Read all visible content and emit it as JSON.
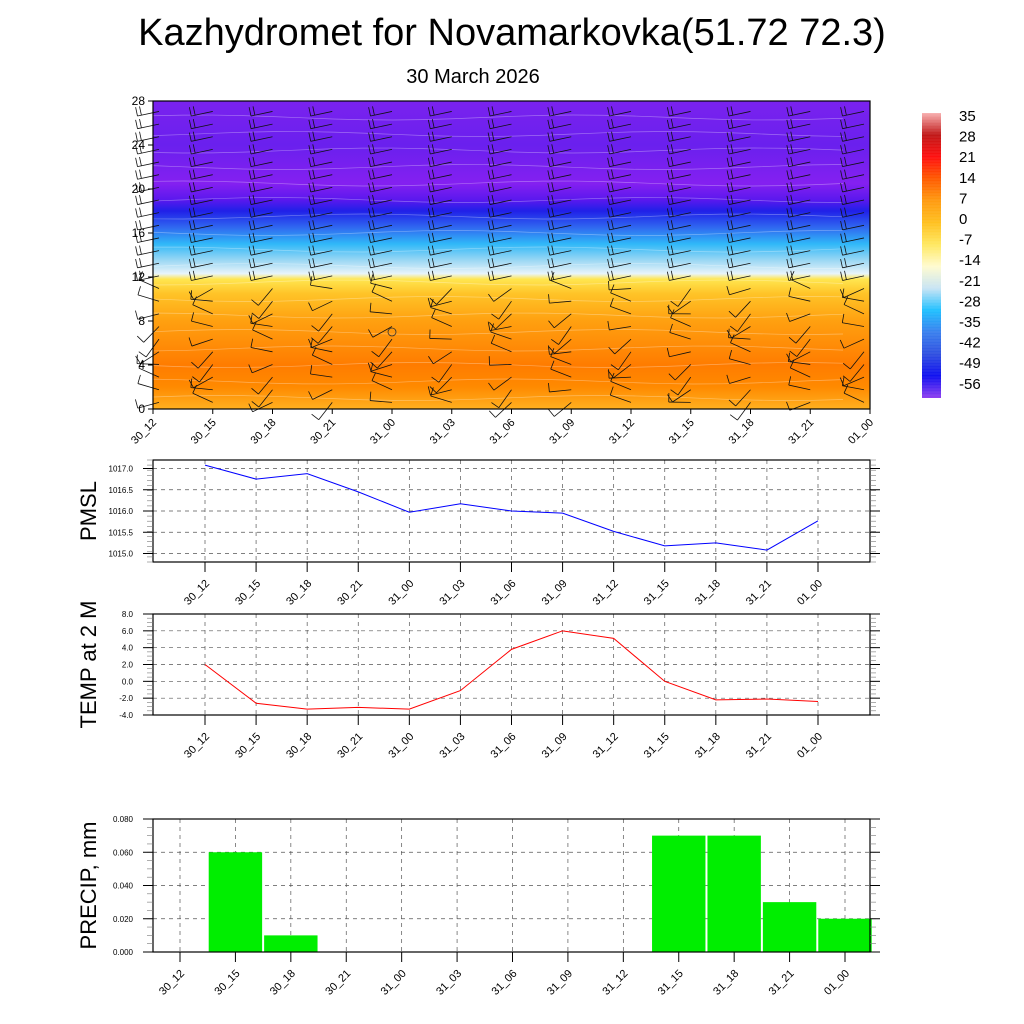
{
  "title": "Kazhydromet for Novamarkovka(51.72 72.3)",
  "subtitle": "30 March 2026",
  "chart_data": [
    {
      "type": "heatmap",
      "name": "temperature-wind-profile",
      "x_tick_labels": [
        "30_12",
        "30_15",
        "30_18",
        "30_21",
        "31_00",
        "31_03",
        "31_06",
        "31_09",
        "31_12",
        "31_15",
        "31_18",
        "31_21",
        "01_00"
      ],
      "y_ticks": [
        0,
        4,
        8,
        12,
        16,
        20,
        24,
        28
      ],
      "ylim": [
        0,
        28
      ],
      "colorbar_labels": [
        "35",
        "28",
        "21",
        "14",
        "7",
        "0",
        "-7",
        "-14",
        "-21",
        "-28",
        "-35",
        "-42",
        "-49",
        "-56"
      ],
      "colorbar_range": [
        -63,
        38
      ],
      "colorbar_colors": [
        "#f8b0b0",
        "#c01818",
        "#ff1010",
        "#ff5a00",
        "#ff9a10",
        "#ffc020",
        "#ffe860",
        "#fffbd0",
        "#c8e4f4",
        "#20c0ff",
        "#3a80ee",
        "#3050e0",
        "#1010f0",
        "#9040f0"
      ],
      "field_colors_by_level": [
        {
          "level": 0,
          "color": "#ffb020"
        },
        {
          "level": 2,
          "color": "#ff8a00"
        },
        {
          "level": 4,
          "color": "#ff7c00"
        },
        {
          "level": 8,
          "color": "#ffa010"
        },
        {
          "level": 10.5,
          "color": "#ffc428"
        },
        {
          "level": 11.8,
          "color": "#ffe650"
        },
        {
          "level": 12.3,
          "color": "#e8f4fa"
        },
        {
          "level": 13.5,
          "color": "#9cd8f4"
        },
        {
          "level": 15,
          "color": "#30b8f8"
        },
        {
          "level": 16.5,
          "color": "#3068f0"
        },
        {
          "level": 18,
          "color": "#2020e8"
        },
        {
          "level": 19,
          "color": "#5a18ee"
        },
        {
          "level": 20.5,
          "color": "#8420f0"
        },
        {
          "level": 24,
          "color": "#6a20ee"
        },
        {
          "level": 28,
          "color": "#7a22ee"
        }
      ]
    },
    {
      "type": "line",
      "name": "pmsl",
      "ylabel": "PMSL",
      "x_tick_labels": [
        "30_12",
        "30_15",
        "30_18",
        "30_21",
        "31_00",
        "31_03",
        "31_06",
        "31_09",
        "31_12",
        "31_15",
        "31_18",
        "31_21",
        "01_00"
      ],
      "values": [
        1017.08,
        1016.75,
        1016.88,
        1016.45,
        1015.97,
        1016.17,
        1016.0,
        1015.95,
        1015.52,
        1015.18,
        1015.25,
        1015.08,
        1015.77
      ],
      "y_tick_labels": [
        "1017.0",
        "1016.5",
        "1016.0",
        "1015.5",
        "1015.0"
      ],
      "y_ticks": [
        1017.0,
        1016.5,
        1016.0,
        1015.5,
        1015.0
      ],
      "ylim": [
        1014.8,
        1017.2
      ],
      "color": "#0000ff",
      "grid": true
    },
    {
      "type": "line",
      "name": "temp2m",
      "ylabel": "TEMP at 2 M",
      "x_tick_labels": [
        "30_12",
        "30_15",
        "30_18",
        "30_21",
        "31_00",
        "31_03",
        "31_06",
        "31_09",
        "31_12",
        "31_15",
        "31_18",
        "31_21",
        "01_00"
      ],
      "values": [
        2.0,
        -2.6,
        -3.3,
        -3.1,
        -3.3,
        -1.1,
        3.8,
        6.0,
        5.1,
        0.0,
        -2.2,
        -2.1,
        -2.4
      ],
      "y_tick_labels": [
        "8.0",
        "6.0",
        "4.0",
        "2.0",
        "0.0",
        "-2.0",
        "-4.0"
      ],
      "y_ticks": [
        8,
        6,
        4,
        2,
        0,
        -2,
        -4
      ],
      "ylim": [
        -4,
        8
      ],
      "color": "#ff0000",
      "grid": true
    },
    {
      "type": "bar",
      "name": "precip",
      "ylabel": "PRECIP, mm",
      "categories": [
        "30_12",
        "30_15",
        "30_18",
        "30_21",
        "31_00",
        "31_03",
        "31_06",
        "31_09",
        "31_12",
        "31_15",
        "31_18",
        "31_21",
        "01_00"
      ],
      "values": [
        0,
        0.06,
        0.01,
        0,
        0,
        0,
        0,
        0,
        0,
        0.07,
        0.07,
        0.03,
        0.02
      ],
      "y_tick_labels": [
        "0.080",
        "0.060",
        "0.040",
        "0.020",
        "0.000"
      ],
      "y_ticks": [
        0.08,
        0.06,
        0.04,
        0.02,
        0
      ],
      "ylim": [
        0,
        0.08
      ],
      "color": "#00ee00",
      "grid": true
    }
  ]
}
